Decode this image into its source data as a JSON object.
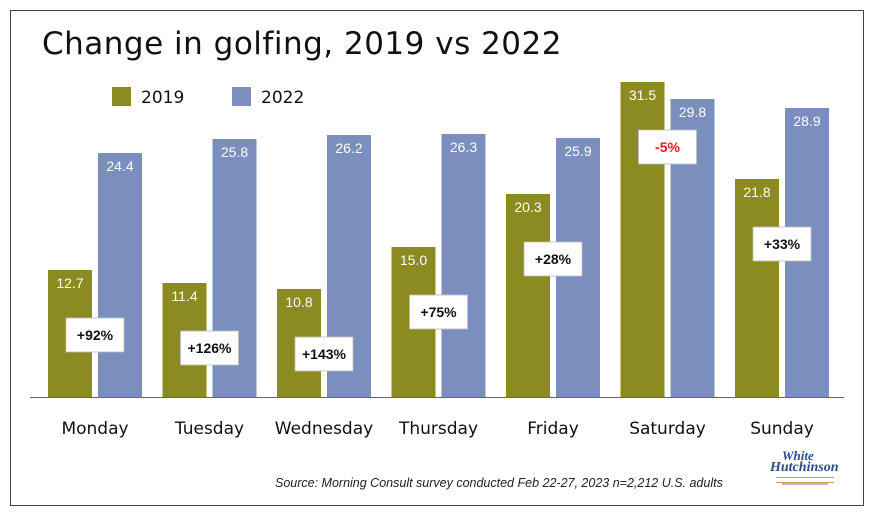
{
  "title": "Change in golfing, 2019 vs 2022",
  "source": "Source: Morning Consult survey conducted Feb 22-27, 2023 n=2,212 U.S. adults",
  "logo": {
    "line1": "White",
    "line2": "Hutchinson"
  },
  "colors": {
    "series_2019": "#8b8b21",
    "series_2022": "#7b8fbe",
    "negative_change": "#e0201c",
    "positive_change": "#111111"
  },
  "chart_data": {
    "type": "bar",
    "title": "Change in golfing, 2019 vs 2022",
    "xlabel": "",
    "ylabel": "",
    "categories": [
      "Monday",
      "Tuesday",
      "Wednesday",
      "Thursday",
      "Friday",
      "Saturday",
      "Sunday"
    ],
    "series": [
      {
        "name": "2019",
        "values": [
          12.7,
          11.4,
          10.8,
          15.0,
          20.3,
          31.5,
          21.8
        ],
        "labels": [
          "12.7",
          "11.4",
          "10.8",
          "15.0",
          "20.3",
          "31.5",
          "21.8"
        ]
      },
      {
        "name": "2022",
        "values": [
          24.4,
          25.8,
          26.2,
          26.3,
          25.9,
          29.8,
          28.9
        ],
        "labels": [
          "24.4",
          "25.8",
          "26.2",
          "26.3",
          "25.9",
          "29.8",
          "28.9"
        ]
      }
    ],
    "changes": [
      "+92%",
      "+126%",
      "+143%",
      "+75%",
      "+28%",
      "-5%",
      "+33%"
    ],
    "ylim": [
      0,
      31.5
    ],
    "grid": false,
    "legend_position": "top-left"
  }
}
